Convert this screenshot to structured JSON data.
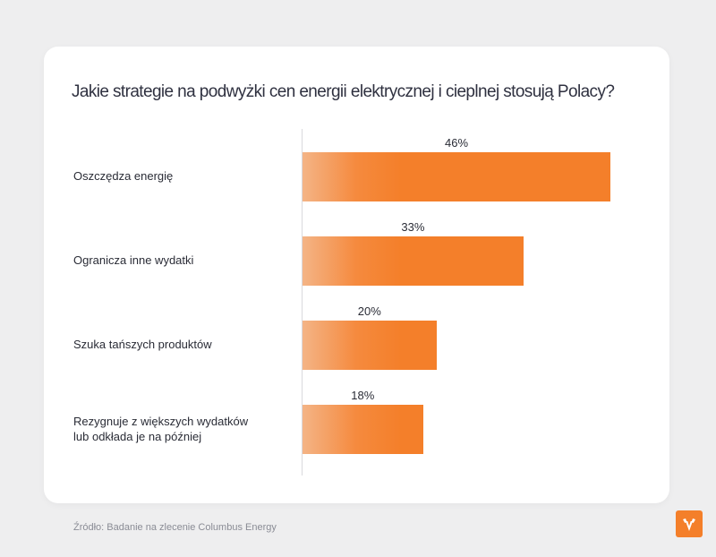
{
  "title": "Jakie strategie na podwyżki cen energii elektrycznej i cieplnej stosują Polacy?",
  "source": "Źródło: Badanie na zlecenie Columbus Energy",
  "chart_data": {
    "type": "bar",
    "orientation": "horizontal",
    "title": "Jakie strategie na podwyżki cen energii elektrycznej i cieplnej stosują Polacy?",
    "categories": [
      "Oszczędza energię",
      "Ogranicza inne wydatki",
      "Szuka tańszych produktów",
      "Rezygnuje z większych wydatków\nlub odkłada je na później"
    ],
    "values": [
      46,
      33,
      20,
      18
    ],
    "value_labels": [
      "46%",
      "33%",
      "20%",
      "18%"
    ],
    "unit": "%",
    "xlim": [
      0,
      55
    ],
    "grid": false,
    "colors": {
      "bar": "#f47f2a",
      "bar_fade": "#f4b486"
    }
  },
  "colors": {
    "background": "#eeeeef",
    "card": "#ffffff",
    "accent": "#f47f2a",
    "title_text": "#2f3140"
  },
  "logo_icon": "columbus-energy-logo-icon"
}
